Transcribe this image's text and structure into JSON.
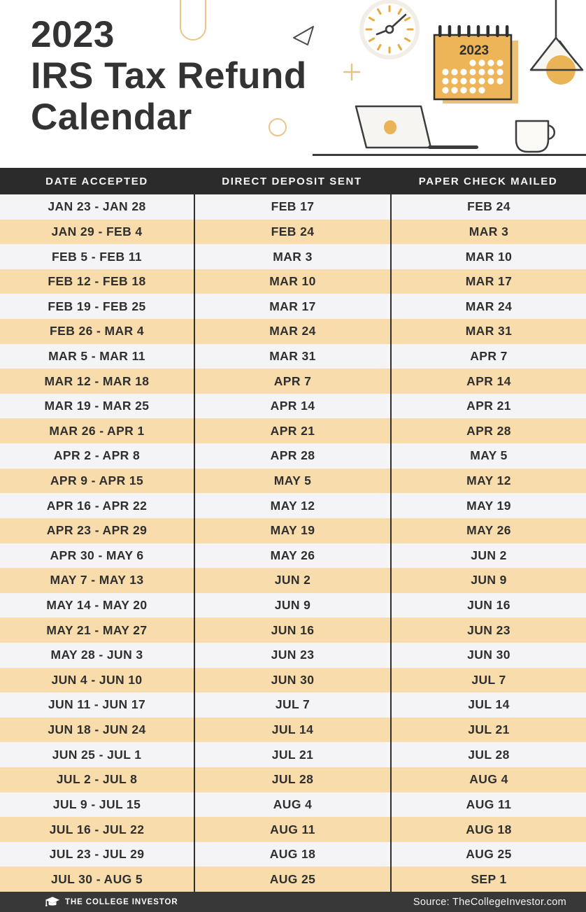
{
  "header": {
    "title_lines": [
      "2023",
      "IRS Tax Refund",
      "Calendar"
    ],
    "calendar_icon_year": "2023"
  },
  "table": {
    "columns": [
      "DATE ACCEPTED",
      "DIRECT DEPOSIT SENT",
      "PAPER CHECK MAILED"
    ],
    "rows": [
      [
        "JAN 23 - JAN 28",
        "FEB 17",
        "FEB 24"
      ],
      [
        "JAN 29 - FEB 4",
        "FEB 24",
        "MAR 3"
      ],
      [
        "FEB 5 - FEB 11",
        "MAR 3",
        "MAR 10"
      ],
      [
        "FEB 12 - FEB 18",
        "MAR 10",
        "MAR 17"
      ],
      [
        "FEB 19 - FEB 25",
        "MAR 17",
        "MAR 24"
      ],
      [
        "FEB 26 - MAR 4",
        "MAR 24",
        "MAR 31"
      ],
      [
        "MAR 5 - MAR 11",
        "MAR 31",
        "APR 7"
      ],
      [
        "MAR 12 - MAR 18",
        "APR 7",
        "APR 14"
      ],
      [
        "MAR 19 - MAR 25",
        "APR 14",
        "APR 21"
      ],
      [
        "MAR 26 - APR 1",
        "APR 21",
        "APR 28"
      ],
      [
        "APR 2 - APR 8",
        "APR 28",
        "MAY 5"
      ],
      [
        "APR 9 - APR 15",
        "MAY 5",
        "MAY 12"
      ],
      [
        "APR 16 - APR 22",
        "MAY 12",
        "MAY 19"
      ],
      [
        "APR 23 - APR 29",
        "MAY 19",
        "MAY 26"
      ],
      [
        "APR 30 - MAY 6",
        "MAY 26",
        "JUN 2"
      ],
      [
        "MAY 7 - MAY 13",
        "JUN 2",
        "JUN 9"
      ],
      [
        "MAY 14 - MAY 20",
        "JUN 9",
        "JUN 16"
      ],
      [
        "MAY 21 - MAY 27",
        "JUN 16",
        "JUN 23"
      ],
      [
        "MAY 28 - JUN 3",
        "JUN 23",
        "JUN 30"
      ],
      [
        "JUN 4 - JUN 10",
        "JUN 30",
        "JUL 7"
      ],
      [
        "JUN 11 - JUN 17",
        "JUL 7",
        "JUL 14"
      ],
      [
        "JUN 18 - JUN 24",
        "JUL 14",
        "JUL 21"
      ],
      [
        "JUN 25 - JUL 1",
        "JUL 21",
        "JUL 28"
      ],
      [
        "JUL 2 - JUL 8",
        "JUL 28",
        "AUG 4"
      ],
      [
        "JUL 9 - JUL 15",
        "AUG 4",
        "AUG 11"
      ],
      [
        "JUL 16 - JUL 22",
        "AUG 11",
        "AUG 18"
      ],
      [
        "JUL 23 - JUL 29",
        "AUG 18",
        "AUG 25"
      ],
      [
        "JUL 30 - AUG 5",
        "AUG 25",
        "SEP 1"
      ]
    ],
    "column_cell_names": [
      "date-accepted-cell",
      "direct-deposit-cell",
      "paper-check-cell"
    ]
  },
  "footer": {
    "brand": "THE COLLEGE INVESTOR",
    "source": "Source: TheCollegeInvestor.com"
  },
  "icons": {
    "decorative": [
      "capsule-icon",
      "triangle-icon",
      "clock-icon",
      "plus-icon",
      "ring-icon",
      "calendar-icon",
      "lamp-icon",
      "laptop-icon",
      "coffee-cup-icon",
      "graduation-cap-icon"
    ]
  },
  "colors": {
    "accent_orange": "#eab355",
    "accent_orange_light": "#eac488",
    "row_tan": "#f8dcab",
    "row_light": "#f4f3f5",
    "header_bar": "#2b2b2b",
    "footer_bar": "#383838",
    "text_dark": "#2f2f2f"
  }
}
